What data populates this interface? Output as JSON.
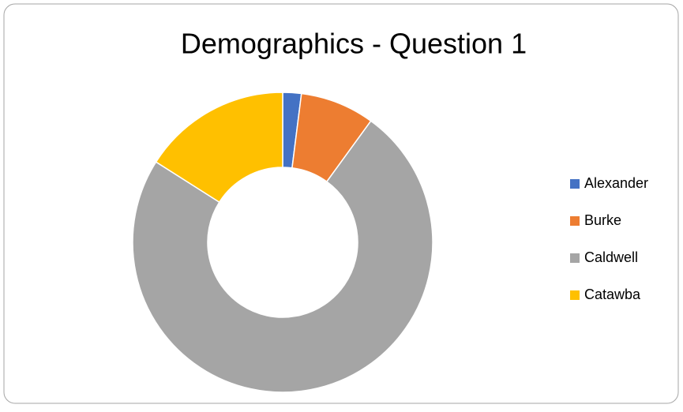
{
  "chart_data": {
    "type": "donut",
    "title": "Demographics - Question 1",
    "categories": [
      "Alexander",
      "Burke",
      "Caldwell",
      "Catawba"
    ],
    "values": [
      2,
      8,
      74,
      16
    ],
    "colors": [
      "#4472c4",
      "#ed7d31",
      "#a5a5a5",
      "#ffc000"
    ],
    "legend": "right"
  }
}
